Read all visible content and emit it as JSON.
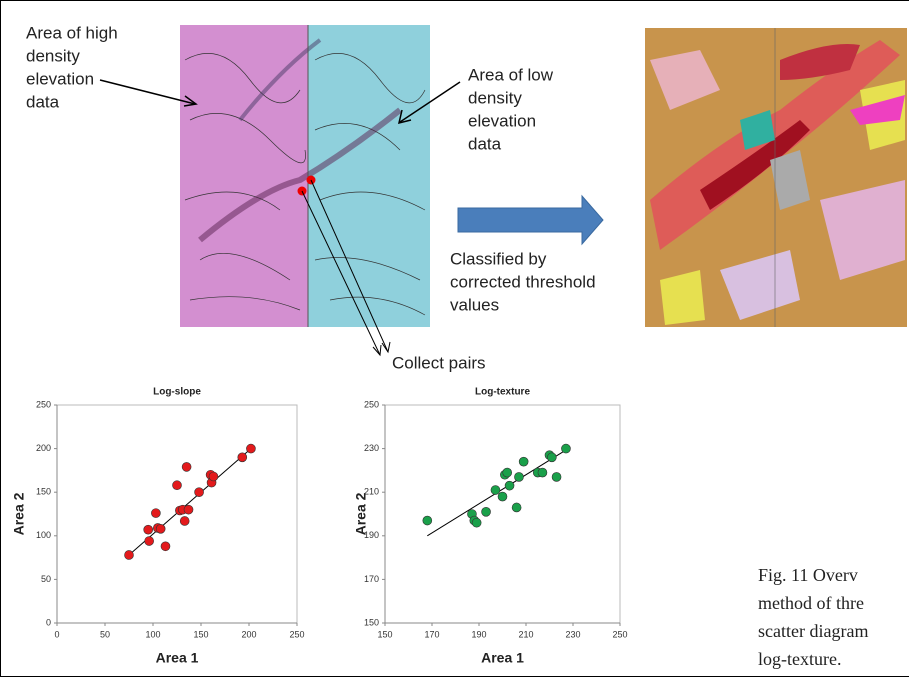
{
  "figure": {
    "high_density_label": [
      "Area of high",
      "density",
      "elevation",
      "data"
    ],
    "low_density_label": [
      "Area of low",
      "density",
      "elevation",
      "data"
    ],
    "classified_label": [
      "Classified by",
      "corrected threshold",
      "values"
    ],
    "collect_label": "Collect pairs",
    "caption": [
      "Fig. 11 Overv",
      "method of thre",
      "scatter diagram",
      "log-texture."
    ]
  },
  "chart_data": [
    {
      "type": "scatter",
      "title": "Log-slope",
      "xlabel": "Area 1",
      "ylabel": "Area 2",
      "color": "#e31a1c",
      "x": [
        75,
        95,
        96,
        103,
        105,
        108,
        113,
        125,
        128,
        131,
        133,
        137,
        135,
        148,
        160,
        161,
        163,
        193,
        202
      ],
      "values": [
        78,
        107,
        94,
        126,
        109,
        108,
        88,
        158,
        129,
        130,
        117,
        130,
        179,
        150,
        170,
        161,
        168,
        190,
        200
      ],
      "trendline": {
        "x": [
          75,
          202
        ],
        "y": [
          78,
          200
        ]
      },
      "xlim": [
        0,
        250
      ],
      "xticks": [
        0,
        50,
        100,
        150,
        200,
        250
      ],
      "ylim": [
        0,
        250
      ],
      "yticks": [
        0,
        50,
        100,
        150,
        200,
        250
      ]
    },
    {
      "type": "scatter",
      "title": "Log-texture",
      "xlabel": "Area 1",
      "ylabel": "Area 2",
      "color": "#1aa04a",
      "x": [
        168,
        187,
        188,
        189,
        193,
        197,
        200,
        201,
        202,
        203,
        206,
        207,
        209,
        215,
        217,
        220,
        221,
        223,
        227
      ],
      "values": [
        197,
        200,
        197,
        196,
        201,
        211,
        208,
        218,
        219,
        213,
        203,
        217,
        224,
        219,
        219,
        227,
        226,
        217,
        230
      ],
      "trendline": {
        "x": [
          168,
          228
        ],
        "y": [
          190,
          230
        ]
      },
      "xlim": [
        150,
        250
      ],
      "xticks": [
        150,
        170,
        190,
        210,
        230,
        250
      ],
      "ylim": [
        150,
        250
      ],
      "yticks": [
        150,
        170,
        190,
        210,
        230,
        250
      ]
    }
  ]
}
